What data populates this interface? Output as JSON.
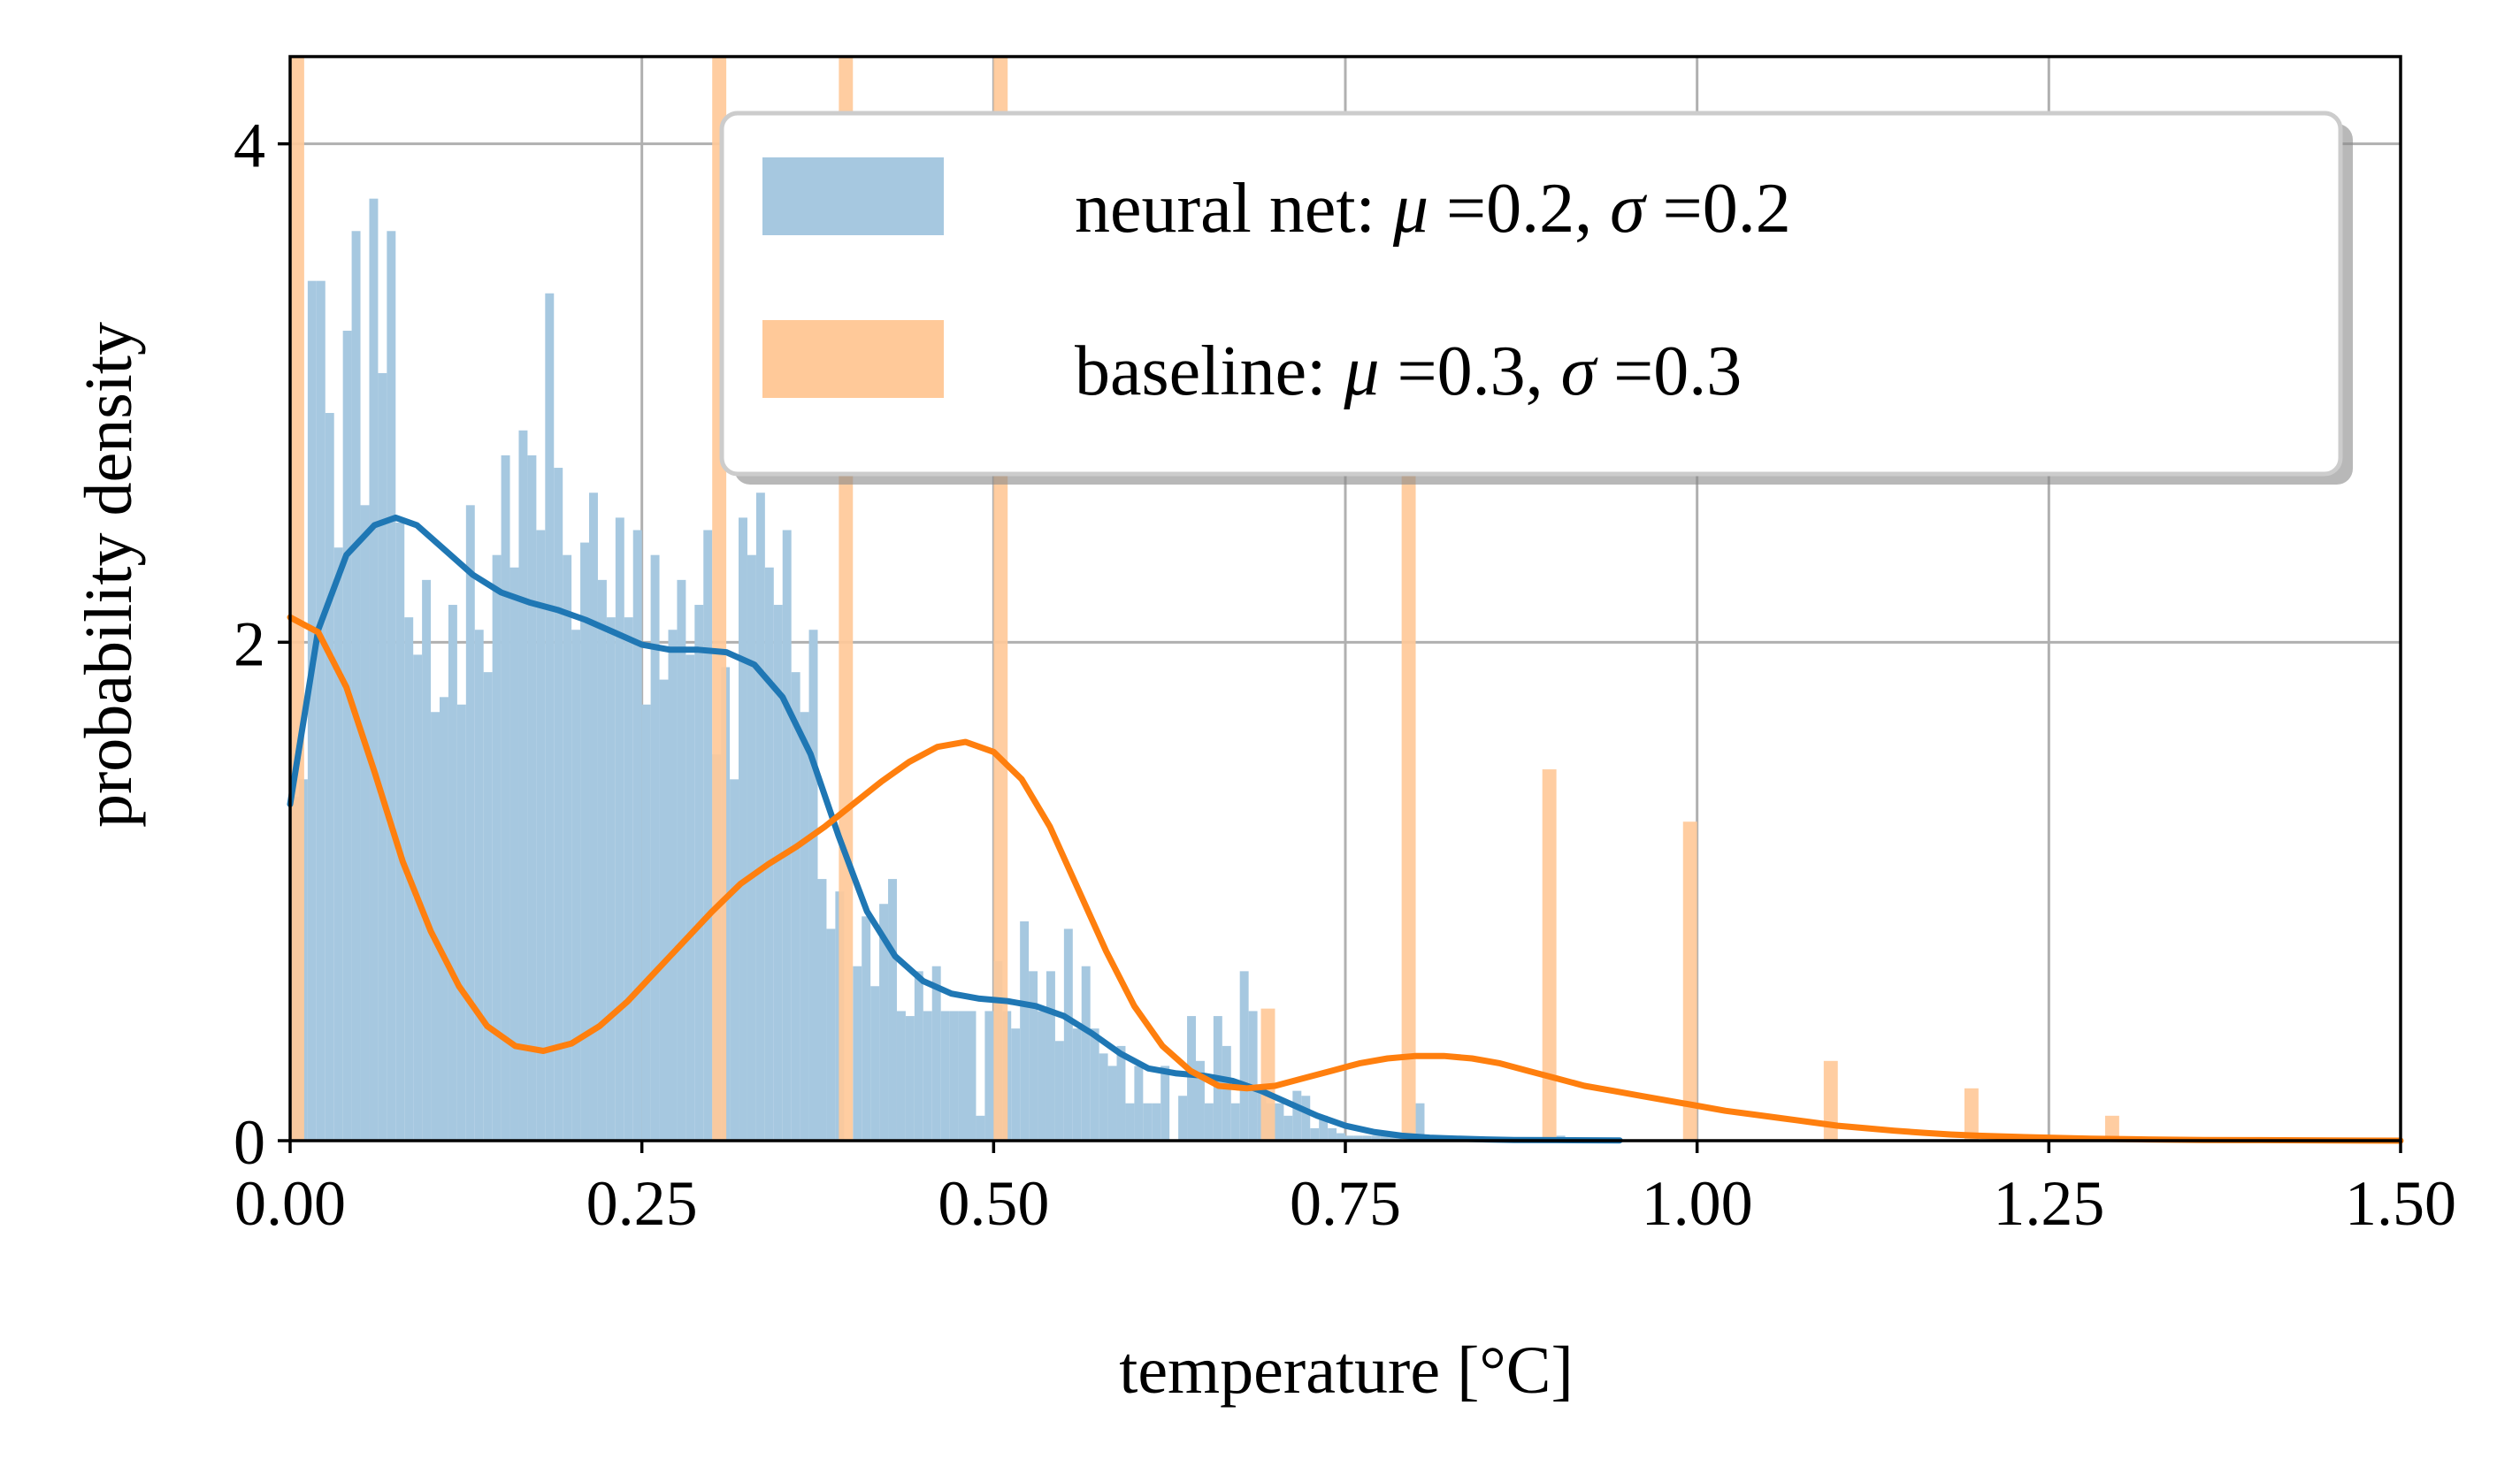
{
  "chart_data": {
    "type": "histogram",
    "title": "",
    "xlabel": "temperature [°C]",
    "ylabel": "probability density",
    "xlim": [
      0.0,
      1.5
    ],
    "ylim": [
      0,
      4.35
    ],
    "grid": true,
    "legend_position": "top-right",
    "xticks": [
      0.0,
      0.25,
      0.5,
      0.75,
      1.0,
      1.25,
      1.5
    ],
    "xtick_labels": [
      "0.00",
      "0.25",
      "0.50",
      "0.75",
      "1.00",
      "1.25",
      "1.50"
    ],
    "yticks": [
      0,
      2,
      4
    ],
    "ytick_labels": [
      "0",
      "2",
      "4"
    ],
    "series": [
      {
        "name": "neural net",
        "legend_label": {
          "prefix": "neural net: ",
          "mu_symbol": "μ",
          "mu_value": " =0.2, ",
          "sigma_symbol": "σ",
          "sigma_value": " =0.2"
        },
        "color": "#a6c8e0",
        "line_color": "#1f77b4",
        "bin_width": 0.00625,
        "bins": [
          [
            0.0,
            1.38
          ],
          [
            0.00625,
            1.45
          ],
          [
            0.0125,
            3.45
          ],
          [
            0.01875,
            3.45
          ],
          [
            0.025,
            2.92
          ],
          [
            0.03125,
            2.38
          ],
          [
            0.0375,
            3.25
          ],
          [
            0.04375,
            3.65
          ],
          [
            0.05,
            2.55
          ],
          [
            0.05625,
            3.78
          ],
          [
            0.0625,
            3.08
          ],
          [
            0.06875,
            3.65
          ],
          [
            0.075,
            2.48
          ],
          [
            0.08125,
            2.1
          ],
          [
            0.0875,
            1.95
          ],
          [
            0.09375,
            2.25
          ],
          [
            0.1,
            1.72
          ],
          [
            0.10625,
            1.78
          ],
          [
            0.1125,
            2.15
          ],
          [
            0.11875,
            1.75
          ],
          [
            0.125,
            2.55
          ],
          [
            0.13125,
            2.05
          ],
          [
            0.1375,
            1.88
          ],
          [
            0.14375,
            2.35
          ],
          [
            0.15,
            2.75
          ],
          [
            0.15625,
            2.3
          ],
          [
            0.1625,
            2.85
          ],
          [
            0.16875,
            2.75
          ],
          [
            0.175,
            2.45
          ],
          [
            0.18125,
            3.4
          ],
          [
            0.1875,
            2.7
          ],
          [
            0.19375,
            2.35
          ],
          [
            0.2,
            2.05
          ],
          [
            0.20625,
            2.4
          ],
          [
            0.2125,
            2.6
          ],
          [
            0.21875,
            2.25
          ],
          [
            0.225,
            2.1
          ],
          [
            0.23125,
            2.5
          ],
          [
            0.2375,
            2.1
          ],
          [
            0.24375,
            2.45
          ],
          [
            0.25,
            1.75
          ],
          [
            0.25625,
            2.35
          ],
          [
            0.2625,
            1.85
          ],
          [
            0.26875,
            2.05
          ],
          [
            0.275,
            2.25
          ],
          [
            0.28125,
            1.95
          ],
          [
            0.2875,
            2.15
          ],
          [
            0.29375,
            2.45
          ],
          [
            0.3,
            1.55
          ],
          [
            0.30625,
            1.9
          ],
          [
            0.3125,
            1.45
          ],
          [
            0.31875,
            2.5
          ],
          [
            0.325,
            2.35
          ],
          [
            0.33125,
            2.6
          ],
          [
            0.3375,
            2.3
          ],
          [
            0.34375,
            2.15
          ],
          [
            0.35,
            2.45
          ],
          [
            0.35625,
            1.88
          ],
          [
            0.3625,
            1.72
          ],
          [
            0.36875,
            2.05
          ],
          [
            0.375,
            1.05
          ],
          [
            0.38125,
            0.85
          ],
          [
            0.3875,
            1.0
          ],
          [
            0.39375,
            0.0
          ],
          [
            0.4,
            0.7
          ],
          [
            0.40625,
            0.9
          ],
          [
            0.4125,
            0.62
          ],
          [
            0.41875,
            0.95
          ],
          [
            0.425,
            1.05
          ],
          [
            0.43125,
            0.52
          ],
          [
            0.4375,
            0.5
          ],
          [
            0.44375,
            0.68
          ],
          [
            0.45,
            0.52
          ],
          [
            0.45625,
            0.7
          ],
          [
            0.4625,
            0.52
          ],
          [
            0.46875,
            0.52
          ],
          [
            0.475,
            0.52
          ],
          [
            0.48125,
            0.52
          ],
          [
            0.4875,
            0.1
          ],
          [
            0.49375,
            0.52
          ],
          [
            0.5,
            0.72
          ],
          [
            0.50625,
            0.52
          ],
          [
            0.5125,
            0.45
          ],
          [
            0.51875,
            0.88
          ],
          [
            0.525,
            0.68
          ],
          [
            0.53125,
            0.52
          ],
          [
            0.5375,
            0.68
          ],
          [
            0.54375,
            0.4
          ],
          [
            0.55,
            0.85
          ],
          [
            0.55625,
            0.45
          ],
          [
            0.5625,
            0.7
          ],
          [
            0.56875,
            0.45
          ],
          [
            0.575,
            0.35
          ],
          [
            0.58125,
            0.3
          ],
          [
            0.5875,
            0.38
          ],
          [
            0.59375,
            0.15
          ],
          [
            0.6,
            0.3
          ],
          [
            0.60625,
            0.15
          ],
          [
            0.6125,
            0.15
          ],
          [
            0.61875,
            0.3
          ],
          [
            0.625,
            0.0
          ],
          [
            0.63125,
            0.18
          ],
          [
            0.6375,
            0.5
          ],
          [
            0.64375,
            0.32
          ],
          [
            0.65,
            0.15
          ],
          [
            0.65625,
            0.5
          ],
          [
            0.6625,
            0.38
          ],
          [
            0.66875,
            0.15
          ],
          [
            0.675,
            0.68
          ],
          [
            0.68125,
            0.52
          ],
          [
            0.6875,
            0.2
          ],
          [
            0.69375,
            0.15
          ],
          [
            0.7,
            0.15
          ],
          [
            0.70625,
            0.1
          ],
          [
            0.7125,
            0.2
          ],
          [
            0.71875,
            0.18
          ],
          [
            0.725,
            0.05
          ],
          [
            0.73125,
            0.1
          ],
          [
            0.7375,
            0.05
          ],
          [
            0.74375,
            0.03
          ],
          [
            0.75,
            0.02
          ],
          [
            0.75625,
            0.02
          ],
          [
            0.7625,
            0.02
          ],
          [
            0.76875,
            0.02
          ],
          [
            0.775,
            0.02
          ],
          [
            0.78125,
            0.02
          ],
          [
            0.7875,
            0.03
          ],
          [
            0.79375,
            0.02
          ],
          [
            0.8,
            0.15
          ],
          [
            0.80625,
            0.02
          ],
          [
            0.8125,
            0.02
          ],
          [
            0.81875,
            0.01
          ],
          [
            0.825,
            0.01
          ],
          [
            0.83125,
            0.01
          ],
          [
            0.8375,
            0.01
          ],
          [
            0.84375,
            0.01
          ],
          [
            0.85,
            0.01
          ],
          [
            0.85625,
            0.01
          ],
          [
            0.8625,
            0.01
          ],
          [
            0.86875,
            0.01
          ],
          [
            0.875,
            0.01
          ],
          [
            0.88125,
            0.01
          ],
          [
            0.8875,
            0.01
          ],
          [
            0.89375,
            0.01
          ],
          [
            0.9,
            0.02
          ],
          [
            0.90625,
            0.01
          ],
          [
            0.9125,
            0.01
          ],
          [
            0.91875,
            0.01
          ],
          [
            0.925,
            0.01
          ],
          [
            0.93125,
            0.01
          ],
          [
            0.9375,
            0.01
          ]
        ],
        "kde": [
          [
            0.0,
            1.35
          ],
          [
            0.02,
            2.05
          ],
          [
            0.04,
            2.35
          ],
          [
            0.06,
            2.47
          ],
          [
            0.075,
            2.5
          ],
          [
            0.09,
            2.47
          ],
          [
            0.11,
            2.37
          ],
          [
            0.13,
            2.27
          ],
          [
            0.15,
            2.2
          ],
          [
            0.17,
            2.16
          ],
          [
            0.19,
            2.13
          ],
          [
            0.21,
            2.09
          ],
          [
            0.23,
            2.04
          ],
          [
            0.25,
            1.99
          ],
          [
            0.27,
            1.97
          ],
          [
            0.29,
            1.97
          ],
          [
            0.31,
            1.96
          ],
          [
            0.33,
            1.91
          ],
          [
            0.35,
            1.78
          ],
          [
            0.37,
            1.55
          ],
          [
            0.39,
            1.22
          ],
          [
            0.41,
            0.92
          ],
          [
            0.43,
            0.74
          ],
          [
            0.45,
            0.64
          ],
          [
            0.47,
            0.59
          ],
          [
            0.49,
            0.57
          ],
          [
            0.51,
            0.56
          ],
          [
            0.53,
            0.54
          ],
          [
            0.55,
            0.5
          ],
          [
            0.57,
            0.43
          ],
          [
            0.59,
            0.35
          ],
          [
            0.61,
            0.29
          ],
          [
            0.63,
            0.27
          ],
          [
            0.65,
            0.26
          ],
          [
            0.67,
            0.24
          ],
          [
            0.69,
            0.2
          ],
          [
            0.71,
            0.15
          ],
          [
            0.73,
            0.1
          ],
          [
            0.75,
            0.06
          ],
          [
            0.77,
            0.035
          ],
          [
            0.79,
            0.02
          ],
          [
            0.81,
            0.012
          ],
          [
            0.83,
            0.008
          ],
          [
            0.85,
            0.005
          ],
          [
            0.87,
            0.003
          ],
          [
            0.9,
            0.002
          ],
          [
            0.945,
            0.001
          ]
        ]
      },
      {
        "name": "baseline",
        "legend_label": {
          "prefix": "baseline: ",
          "mu_symbol": "μ",
          "mu_value": " =0.3, ",
          "sigma_symbol": "σ",
          "sigma_value": " =0.3"
        },
        "color": "#ffc999",
        "line_color": "#ff7f0e",
        "bin_width": 0.01,
        "bins": [
          [
            0.0,
            4.6
          ],
          [
            0.3,
            4.6
          ],
          [
            0.39,
            4.6
          ],
          [
            0.5,
            4.6
          ],
          [
            0.69,
            0.53
          ],
          [
            0.79,
            2.9
          ],
          [
            0.89,
            1.49
          ],
          [
            0.99,
            1.28
          ],
          [
            1.09,
            0.32
          ],
          [
            1.19,
            0.21
          ],
          [
            1.29,
            0.1
          ]
        ],
        "kde": [
          [
            0.0,
            2.1
          ],
          [
            0.02,
            2.04
          ],
          [
            0.04,
            1.82
          ],
          [
            0.06,
            1.48
          ],
          [
            0.08,
            1.12
          ],
          [
            0.1,
            0.84
          ],
          [
            0.12,
            0.62
          ],
          [
            0.14,
            0.46
          ],
          [
            0.16,
            0.38
          ],
          [
            0.18,
            0.36
          ],
          [
            0.2,
            0.39
          ],
          [
            0.22,
            0.46
          ],
          [
            0.24,
            0.56
          ],
          [
            0.26,
            0.68
          ],
          [
            0.28,
            0.8
          ],
          [
            0.3,
            0.92
          ],
          [
            0.32,
            1.03
          ],
          [
            0.34,
            1.11
          ],
          [
            0.36,
            1.18
          ],
          [
            0.38,
            1.26
          ],
          [
            0.4,
            1.35
          ],
          [
            0.42,
            1.44
          ],
          [
            0.44,
            1.52
          ],
          [
            0.46,
            1.58
          ],
          [
            0.48,
            1.6
          ],
          [
            0.5,
            1.56
          ],
          [
            0.52,
            1.45
          ],
          [
            0.54,
            1.26
          ],
          [
            0.56,
            1.01
          ],
          [
            0.58,
            0.76
          ],
          [
            0.6,
            0.54
          ],
          [
            0.62,
            0.38
          ],
          [
            0.64,
            0.28
          ],
          [
            0.66,
            0.22
          ],
          [
            0.68,
            0.21
          ],
          [
            0.7,
            0.22
          ],
          [
            0.72,
            0.25
          ],
          [
            0.74,
            0.28
          ],
          [
            0.76,
            0.31
          ],
          [
            0.78,
            0.33
          ],
          [
            0.8,
            0.34
          ],
          [
            0.82,
            0.34
          ],
          [
            0.84,
            0.33
          ],
          [
            0.86,
            0.31
          ],
          [
            0.88,
            0.28
          ],
          [
            0.9,
            0.25
          ],
          [
            0.92,
            0.22
          ],
          [
            0.94,
            0.2
          ],
          [
            0.96,
            0.18
          ],
          [
            0.98,
            0.16
          ],
          [
            1.0,
            0.14
          ],
          [
            1.02,
            0.12
          ],
          [
            1.04,
            0.105
          ],
          [
            1.06,
            0.09
          ],
          [
            1.08,
            0.075
          ],
          [
            1.1,
            0.06
          ],
          [
            1.12,
            0.05
          ],
          [
            1.14,
            0.04
          ],
          [
            1.16,
            0.032
          ],
          [
            1.18,
            0.025
          ],
          [
            1.2,
            0.02
          ],
          [
            1.24,
            0.013
          ],
          [
            1.28,
            0.008
          ],
          [
            1.32,
            0.005
          ],
          [
            1.36,
            0.003
          ],
          [
            1.4,
            0.002
          ],
          [
            1.45,
            0.001
          ],
          [
            1.5,
            0.0
          ]
        ]
      }
    ]
  },
  "colors": {
    "grid": "#b0b0b0",
    "axis": "#000000",
    "legend_frame": "#cccccc",
    "legend_shadow": "#888888"
  }
}
